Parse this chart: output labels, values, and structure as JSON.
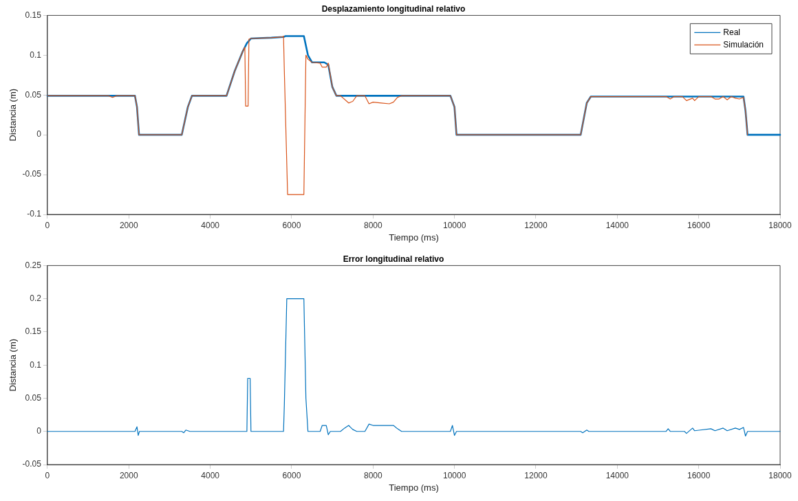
{
  "chart_data": [
    {
      "type": "line",
      "title": "Desplazamiento longitudinal relativo",
      "xlabel": "Tiempo (ms)",
      "ylabel": "Distancia (m)",
      "xlim": [
        0,
        18000
      ],
      "xticks": [
        0,
        2000,
        4000,
        6000,
        8000,
        10000,
        12000,
        14000,
        16000,
        18000
      ],
      "ylim": [
        -0.1,
        0.15
      ],
      "yticks": [
        -0.1,
        -0.05,
        0,
        0.05,
        0.1,
        0.15
      ],
      "legend": "top right",
      "marker": "none",
      "line_style": "solid",
      "series": [
        {
          "name": "Real",
          "color": "#0072bd",
          "x": [
            0,
            1500,
            2150,
            2200,
            2250,
            3300,
            3450,
            3550,
            4400,
            4600,
            4800,
            4900,
            5000,
            5500,
            5800,
            5850,
            6300,
            6400,
            6500,
            6800,
            6900,
            7000,
            7100,
            9900,
            10000,
            10050,
            13100,
            13250,
            13350,
            15000,
            17100,
            17150,
            17200,
            18000
          ],
          "values": [
            0.049,
            0.049,
            0.049,
            0.035,
            0,
            0,
            0.035,
            0.049,
            0.049,
            0.08,
            0.105,
            0.115,
            0.121,
            0.122,
            0.123,
            0.124,
            0.124,
            0.1,
            0.091,
            0.091,
            0.088,
            0.06,
            0.049,
            0.049,
            0.035,
            0,
            0,
            0.04,
            0.048,
            0.048,
            0.048,
            0.03,
            0,
            0
          ]
        },
        {
          "name": "Simulación",
          "color": "#d95319",
          "x": [
            0,
            1500,
            1600,
            1700,
            2150,
            2200,
            2250,
            3300,
            3450,
            3550,
            4400,
            4600,
            4800,
            4850,
            4870,
            4930,
            4950,
            5000,
            5500,
            5780,
            5800,
            5820,
            5900,
            6300,
            6350,
            6400,
            6500,
            6700,
            6750,
            6850,
            6900,
            7000,
            7100,
            7200,
            7400,
            7500,
            7600,
            7800,
            7900,
            8000,
            8200,
            8400,
            8500,
            8600,
            8700,
            9900,
            10000,
            10050,
            13100,
            13250,
            13350,
            15200,
            15300,
            15400,
            15600,
            15700,
            15850,
            15900,
            16000,
            16300,
            16400,
            16500,
            16600,
            16700,
            16800,
            16900,
            17000,
            17100,
            17150,
            17200
          ],
          "values": [
            0.049,
            0.049,
            0.047,
            0.049,
            0.049,
            0.035,
            0,
            0,
            0.035,
            0.049,
            0.049,
            0.08,
            0.105,
            0.11,
            0.036,
            0.036,
            0.12,
            0.121,
            0.122,
            0.123,
            0.124,
            0.08,
            -0.075,
            -0.075,
            0.1,
            0.095,
            0.091,
            0.09,
            0.085,
            0.085,
            0.09,
            0.06,
            0.049,
            0.049,
            0.04,
            0.042,
            0.049,
            0.049,
            0.039,
            0.041,
            0.04,
            0.039,
            0.041,
            0.047,
            0.049,
            0.049,
            0.035,
            0,
            0,
            0.04,
            0.048,
            0.048,
            0.045,
            0.048,
            0.048,
            0.043,
            0.046,
            0.043,
            0.048,
            0.048,
            0.045,
            0.045,
            0.048,
            0.044,
            0.048,
            0.046,
            0.045,
            0.047,
            0.03,
            0
          ]
        }
      ]
    },
    {
      "type": "line",
      "title": "Error longitudinal relativo",
      "xlabel": "Tiempo (ms)",
      "ylabel": "Distancia (m)",
      "xlim": [
        0,
        18000
      ],
      "xticks": [
        0,
        2000,
        4000,
        6000,
        8000,
        10000,
        12000,
        14000,
        16000,
        18000
      ],
      "ylim": [
        -0.05,
        0.25
      ],
      "yticks": [
        -0.05,
        0,
        0.05,
        0.1,
        0.15,
        0.2,
        0.25
      ],
      "marker": "none",
      "line_style": "solid",
      "series": [
        {
          "color": "#0072bd",
          "x": [
            0,
            2150,
            2200,
            2230,
            2260,
            3300,
            3350,
            3400,
            3500,
            4900,
            4920,
            4980,
            5000,
            5800,
            5820,
            5880,
            6300,
            6350,
            6400,
            6700,
            6750,
            6850,
            6900,
            6950,
            7200,
            7300,
            7400,
            7500,
            7600,
            7800,
            7900,
            8000,
            8500,
            8600,
            8700,
            9900,
            9950,
            10000,
            10050,
            13100,
            13150,
            13250,
            13300,
            15200,
            15250,
            15300,
            15650,
            15700,
            15850,
            15900,
            16300,
            16400,
            16600,
            16700,
            16900,
            17000,
            17100,
            17150,
            17200,
            18000
          ],
          "values": [
            0,
            0,
            0.007,
            -0.006,
            0,
            0,
            -0.002,
            0.002,
            0,
            0,
            0.08,
            0.08,
            0,
            0,
            0.04,
            0.2,
            0.2,
            0.05,
            0,
            0,
            0.009,
            0.009,
            -0.005,
            0,
            0,
            0.005,
            0.009,
            0.003,
            0,
            0,
            0.011,
            0.009,
            0.009,
            0.004,
            0,
            0,
            0.009,
            -0.006,
            0,
            0,
            -0.002,
            0.002,
            0,
            0,
            0.004,
            0,
            0,
            -0.003,
            0.005,
            0.001,
            0.004,
            0.001,
            0.005,
            0.001,
            0.005,
            0.003,
            0.006,
            -0.007,
            0,
            0
          ]
        }
      ]
    }
  ]
}
